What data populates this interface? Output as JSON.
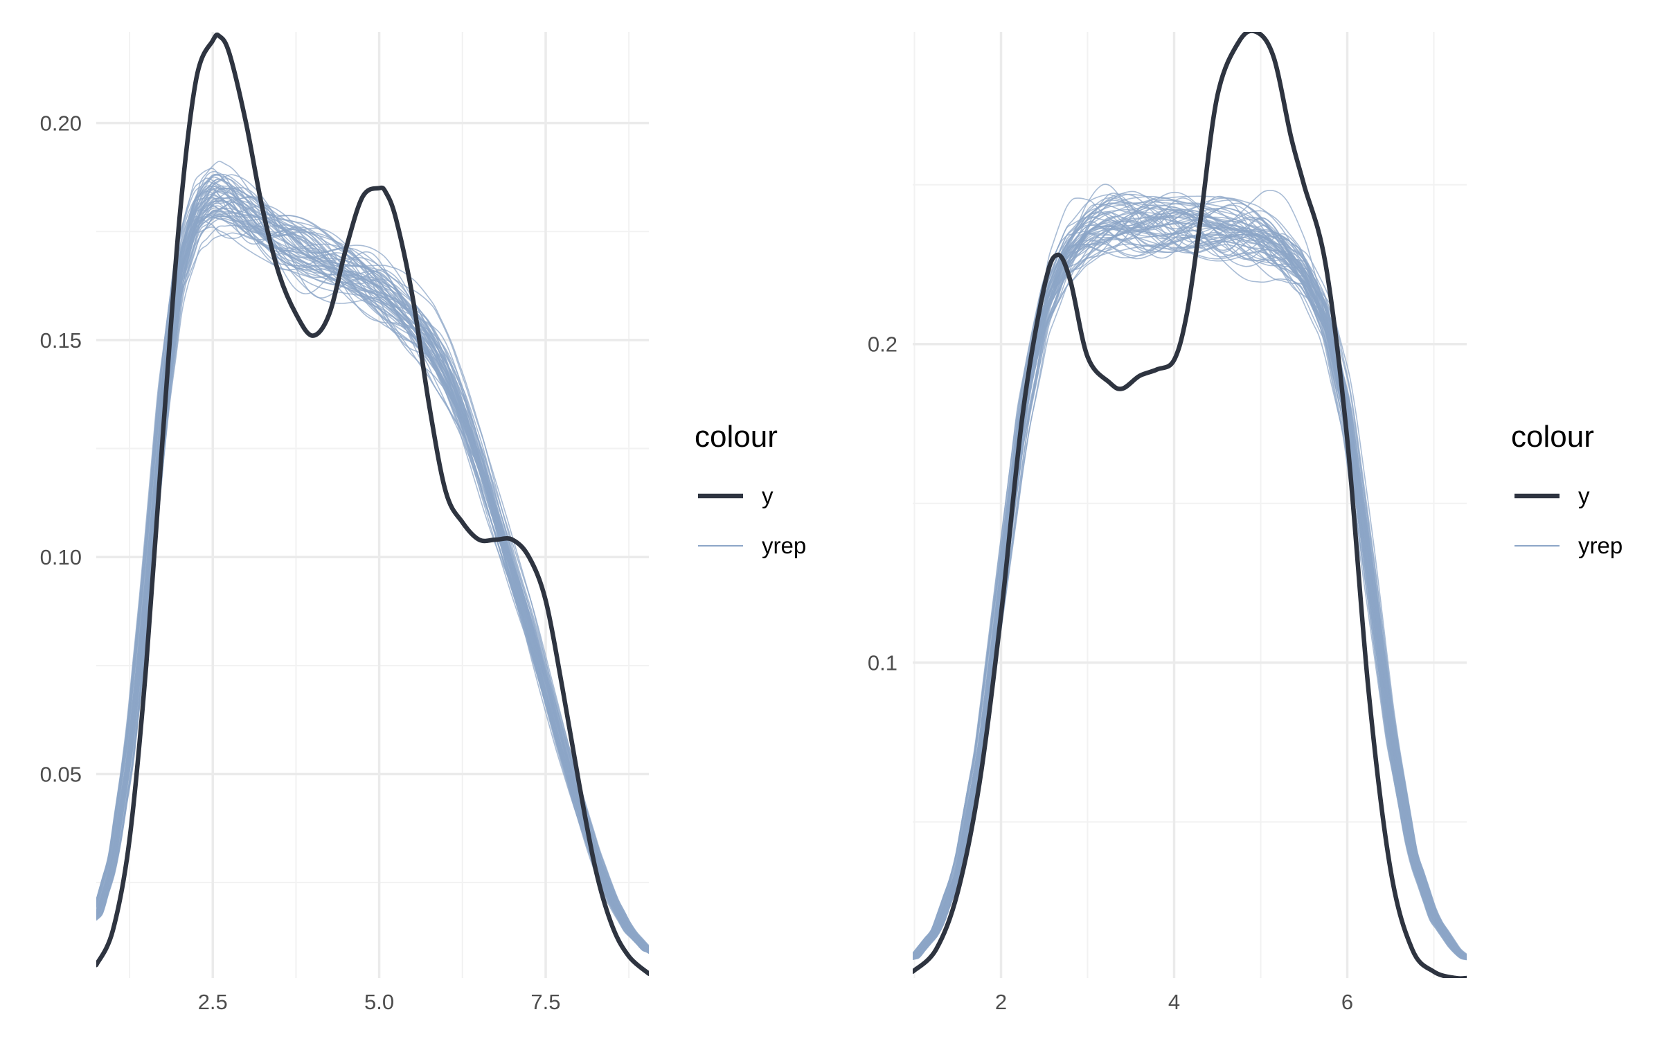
{
  "colors": {
    "y": "#2e3440",
    "yrep": "#8ca6c7",
    "grid_major": "#ebebeb",
    "grid_minor": "#f2f2f2",
    "tick_text": "#4d4d4d",
    "background": "#ffffff"
  },
  "chart_data": [
    {
      "type": "line",
      "subtype": "posterior predictive density overlay",
      "title": "",
      "xlabel": "",
      "ylabel": "",
      "xlim": [
        0.75,
        9.05
      ],
      "ylim": [
        0.003,
        0.221
      ],
      "x_ticks": [
        2.5,
        5.0,
        7.5
      ],
      "x_tick_labels": [
        "2.5",
        "5.0",
        "7.5"
      ],
      "x_minor_ticks": [
        1.25,
        3.75,
        6.25,
        8.75
      ],
      "y_ticks": [
        0.05,
        0.1,
        0.15,
        0.2
      ],
      "y_tick_labels": [
        "0.05",
        "0.10",
        "0.15",
        "0.20"
      ],
      "y_minor_ticks": [
        0.025,
        0.075,
        0.125,
        0.175
      ],
      "grid": true,
      "legend": {
        "title": "colour",
        "position": "right",
        "items": [
          {
            "label": "y",
            "series": "y"
          },
          {
            "label": "yrep",
            "series": "yrep"
          }
        ]
      },
      "series": [
        {
          "name": "y",
          "x": [
            0.75,
            1.0,
            1.25,
            1.5,
            1.75,
            2.0,
            2.25,
            2.5,
            2.6,
            2.75,
            3.0,
            3.25,
            3.5,
            3.75,
            4.0,
            4.25,
            4.5,
            4.75,
            5.0,
            5.1,
            5.25,
            5.5,
            5.75,
            6.0,
            6.25,
            6.5,
            6.75,
            7.0,
            7.25,
            7.5,
            7.75,
            8.0,
            8.25,
            8.5,
            8.75,
            9.05
          ],
          "values": [
            0.006,
            0.014,
            0.035,
            0.075,
            0.128,
            0.178,
            0.21,
            0.219,
            0.22,
            0.216,
            0.2,
            0.18,
            0.165,
            0.156,
            0.151,
            0.156,
            0.171,
            0.183,
            0.185,
            0.184,
            0.178,
            0.16,
            0.135,
            0.115,
            0.108,
            0.104,
            0.104,
            0.104,
            0.1,
            0.09,
            0.07,
            0.048,
            0.028,
            0.015,
            0.008,
            0.004
          ]
        },
        {
          "name": "yrep",
          "draws": 60,
          "x": [
            0.75,
            1.0,
            1.25,
            1.5,
            1.75,
            2.0,
            2.25,
            2.5,
            2.75,
            3.0,
            3.25,
            3.5,
            3.75,
            4.0,
            4.25,
            4.5,
            4.75,
            5.0,
            5.25,
            5.5,
            5.75,
            6.0,
            6.25,
            6.5,
            6.75,
            7.0,
            7.25,
            7.5,
            7.75,
            8.0,
            8.25,
            8.5,
            8.75,
            9.05
          ],
          "values": [
            0.017,
            0.03,
            0.055,
            0.092,
            0.135,
            0.166,
            0.179,
            0.183,
            0.182,
            0.179,
            0.176,
            0.173,
            0.171,
            0.169,
            0.167,
            0.165,
            0.163,
            0.161,
            0.158,
            0.154,
            0.149,
            0.142,
            0.133,
            0.122,
            0.109,
            0.096,
            0.084,
            0.07,
            0.056,
            0.043,
            0.031,
            0.021,
            0.014,
            0.009
          ]
        }
      ]
    },
    {
      "type": "line",
      "subtype": "posterior predictive density overlay",
      "title": "",
      "xlabel": "",
      "ylabel": "",
      "xlim": [
        0.98,
        7.38
      ],
      "ylim": [
        0.001,
        0.298
      ],
      "x_ticks": [
        2,
        4,
        6
      ],
      "x_tick_labels": [
        "2",
        "4",
        "6"
      ],
      "x_minor_ticks": [
        1,
        3,
        5,
        7
      ],
      "y_ticks": [
        0.1,
        0.2
      ],
      "y_tick_labels": [
        "0.1",
        "0.2"
      ],
      "y_minor_ticks": [
        0.05,
        0.15,
        0.25
      ],
      "grid": true,
      "legend": {
        "title": "colour",
        "position": "right",
        "items": [
          {
            "label": "y",
            "series": "y"
          },
          {
            "label": "yrep",
            "series": "yrep"
          }
        ]
      },
      "series": [
        {
          "name": "y",
          "x": [
            0.98,
            1.25,
            1.5,
            1.75,
            2.0,
            2.25,
            2.5,
            2.65,
            2.8,
            3.0,
            3.25,
            3.4,
            3.6,
            3.8,
            4.0,
            4.15,
            4.3,
            4.5,
            4.75,
            4.95,
            5.15,
            5.35,
            5.5,
            5.75,
            6.0,
            6.25,
            6.5,
            6.75,
            7.0,
            7.25,
            7.38
          ],
          "values": [
            0.003,
            0.01,
            0.028,
            0.062,
            0.115,
            0.178,
            0.218,
            0.228,
            0.22,
            0.196,
            0.188,
            0.186,
            0.19,
            0.192,
            0.195,
            0.21,
            0.238,
            0.278,
            0.295,
            0.298,
            0.29,
            0.265,
            0.25,
            0.225,
            0.17,
            0.09,
            0.035,
            0.01,
            0.003,
            0.001,
            0.001
          ]
        },
        {
          "name": "yrep",
          "draws": 60,
          "x": [
            0.98,
            1.25,
            1.5,
            1.75,
            2.0,
            2.25,
            2.5,
            2.75,
            3.0,
            3.25,
            3.5,
            3.75,
            4.0,
            4.25,
            4.5,
            4.75,
            5.0,
            5.25,
            5.5,
            5.75,
            6.0,
            6.25,
            6.5,
            6.75,
            7.0,
            7.25,
            7.38
          ],
          "values": [
            0.007,
            0.016,
            0.035,
            0.072,
            0.125,
            0.178,
            0.212,
            0.228,
            0.235,
            0.238,
            0.239,
            0.239,
            0.238,
            0.237,
            0.236,
            0.235,
            0.233,
            0.229,
            0.222,
            0.208,
            0.178,
            0.13,
            0.078,
            0.04,
            0.02,
            0.01,
            0.007
          ]
        }
      ]
    }
  ]
}
